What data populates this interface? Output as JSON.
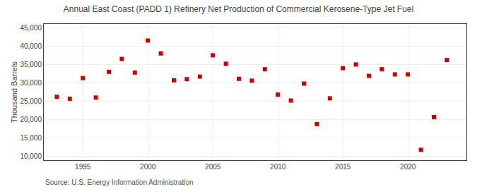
{
  "chart_data": {
    "type": "scatter",
    "title": "Annual East Coast (PADD 1) Refinery Net Production of Commercial Kerosene-Type Jet Fuel",
    "ylabel": "Thousand Barrels",
    "annotations": [
      "Source: U.S. Energy Information Administration"
    ],
    "x": [
      1993,
      1994,
      1995,
      1996,
      1997,
      1998,
      1999,
      2000,
      2001,
      2002,
      2003,
      2004,
      2005,
      2006,
      2007,
      2008,
      2009,
      2010,
      2011,
      2012,
      2013,
      2014,
      2015,
      2016,
      2017,
      2018,
      2019,
      2020,
      2021,
      2022,
      2023
    ],
    "values": [
      26200,
      25700,
      31300,
      26000,
      33000,
      36500,
      32800,
      41500,
      38000,
      30700,
      31000,
      31700,
      37500,
      35200,
      31100,
      30600,
      33700,
      26800,
      25200,
      29800,
      18800,
      25800,
      34000,
      35000,
      31900,
      33700,
      32300,
      32300,
      11800,
      20700,
      36200
    ],
    "color": "#cc0000",
    "marker": "square",
    "xlim": [
      1992.0,
      2024.5
    ],
    "xticks": [
      1995,
      2000,
      2005,
      2010,
      2015,
      2020
    ],
    "ylim": [
      9000,
      46000
    ],
    "yticks": [
      {
        "value": 10000,
        "label": "10,000"
      },
      {
        "value": 15000,
        "label": "15,000"
      },
      {
        "value": 20000,
        "label": "20,000"
      },
      {
        "value": 25000,
        "label": "25,000"
      },
      {
        "value": 30000,
        "label": "30,000"
      },
      {
        "value": 35000,
        "label": "35,000"
      },
      {
        "value": 40000,
        "label": "40,000"
      },
      {
        "value": 45000,
        "label": "45,000"
      }
    ],
    "grid": true
  }
}
